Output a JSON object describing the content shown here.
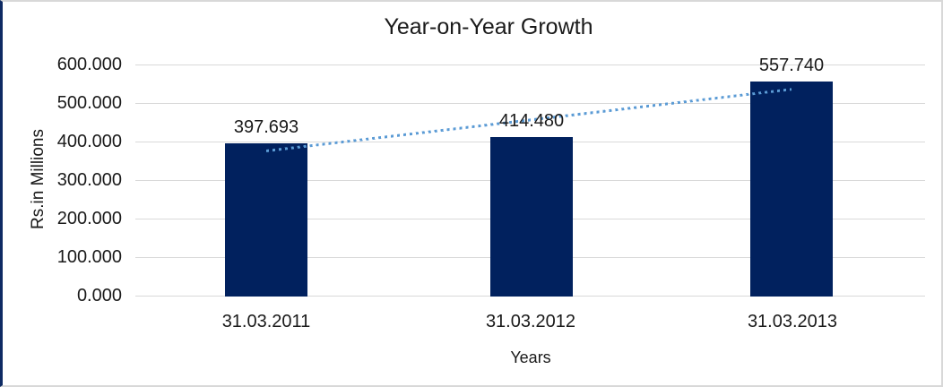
{
  "chart_data": {
    "type": "bar",
    "title": "Year-on-Year Growth",
    "xlabel": "Years",
    "ylabel": "Rs.in Millions",
    "categories": [
      "31.03.2011",
      "31.03.2012",
      "31.03.2013"
    ],
    "values": [
      397.693,
      414.48,
      557.74
    ],
    "data_labels": [
      "397.693",
      "414.480",
      "557.740"
    ],
    "yticks": [
      "600.000",
      "500.000",
      "400.000",
      "300.000",
      "200.000",
      "100.000",
      "0.000"
    ],
    "ylim": [
      0,
      600
    ],
    "ytick_interval": 100,
    "grid": "horizontal-only",
    "legend": "none",
    "bar_color": "#01215e",
    "gridline_color": "#d9d9d9",
    "trendline": {
      "type": "linear",
      "style": "dotted",
      "color": "#5b9bd5",
      "endpoint_values": [
        376.66,
        536.71
      ]
    }
  }
}
